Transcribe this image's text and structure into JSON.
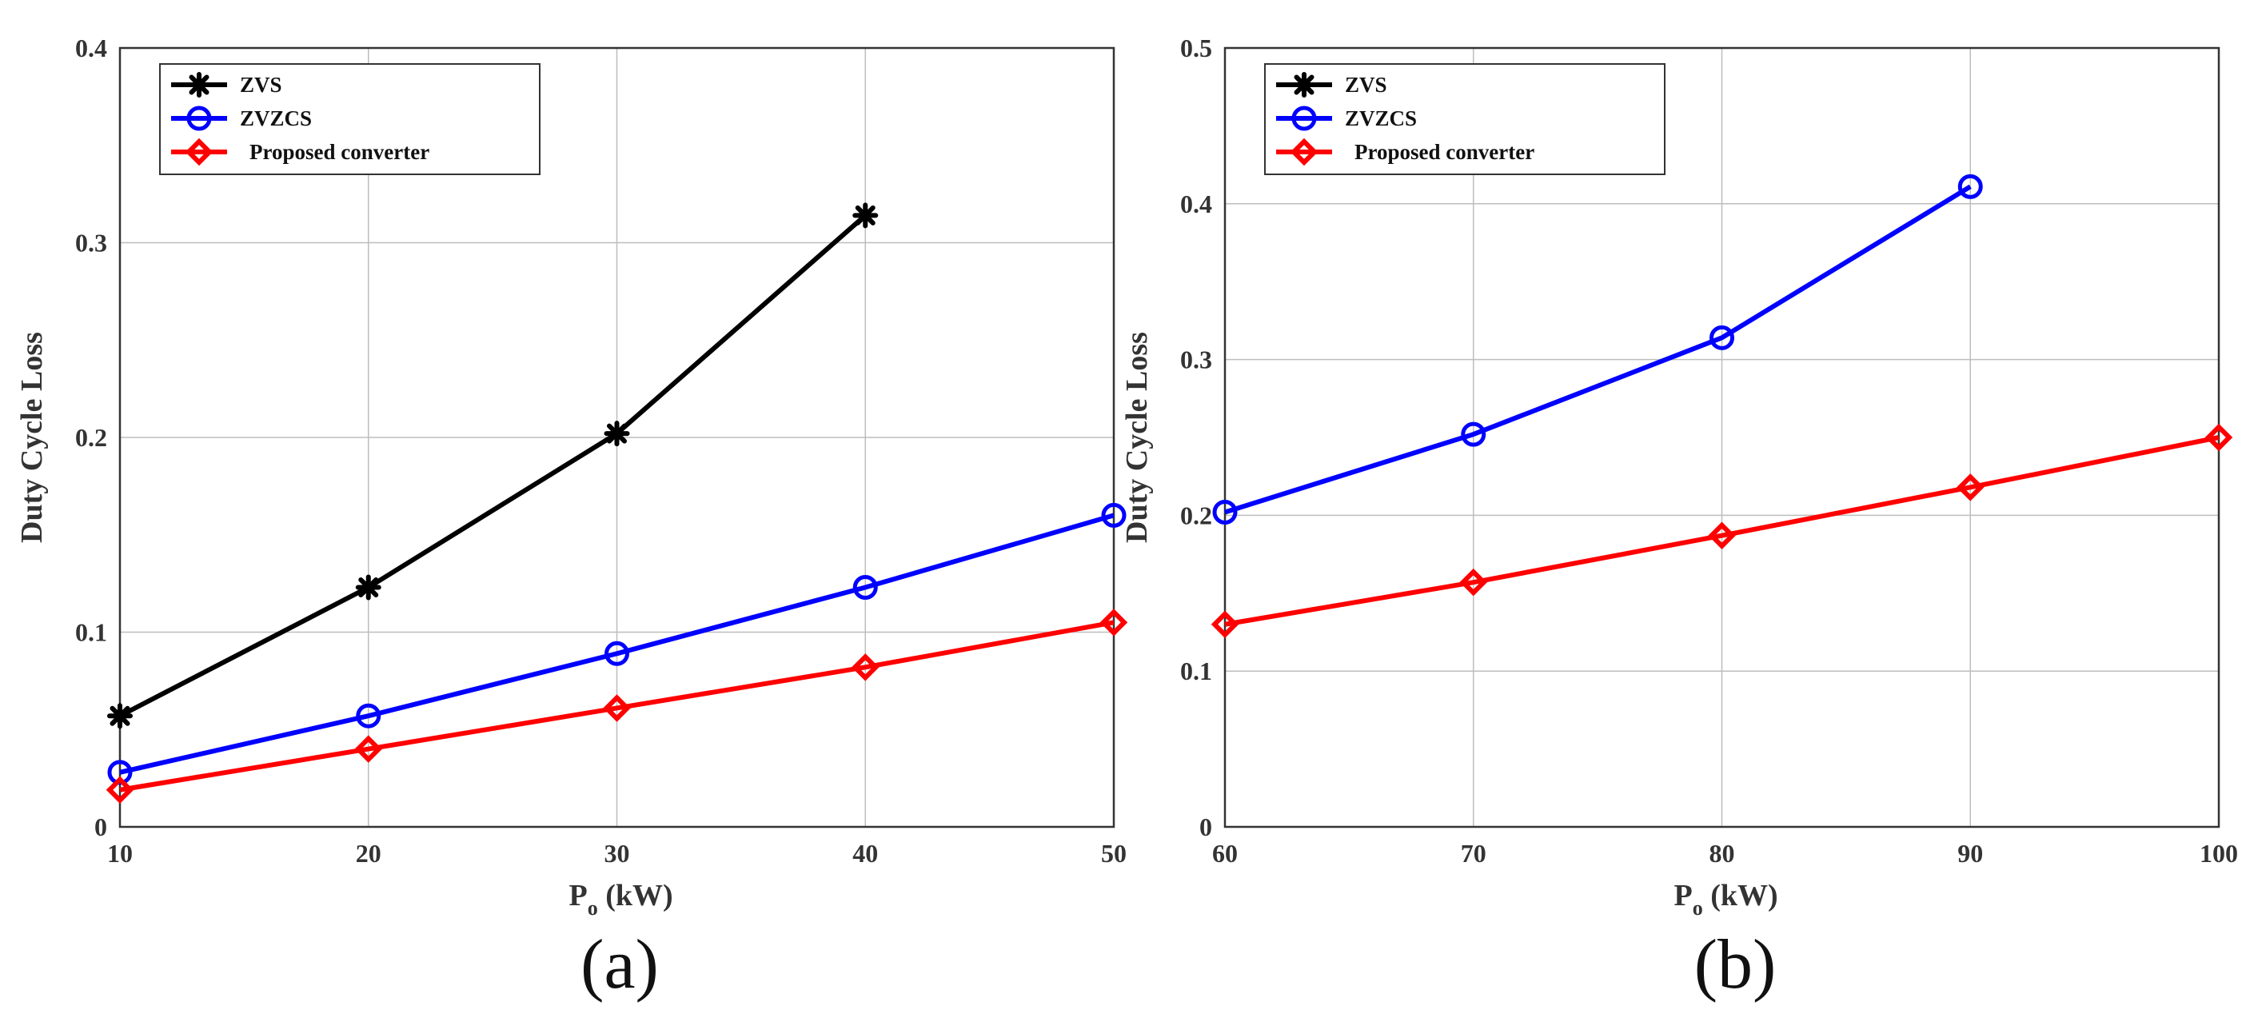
{
  "chart_data": [
    {
      "type": "line",
      "caption": "(a)",
      "xlabel_main": "P",
      "xlabel_sub": "o",
      "xlabel_unit": " (kW)",
      "ylabel": "Duty Cycle Loss",
      "xlim": [
        10,
        50
      ],
      "ylim": [
        0,
        0.4
      ],
      "xticks": [
        10,
        20,
        30,
        40,
        50
      ],
      "yticks": [
        0,
        0.1,
        0.2,
        0.3,
        0.4
      ],
      "ytick_labels": [
        "0",
        "0.1",
        "0.2",
        "0.3",
        "0.4"
      ],
      "grid": true,
      "legend_position": "top-left",
      "series": [
        {
          "name": "ZVS",
          "color": "#000000",
          "marker": "star",
          "x": [
            10,
            20,
            30,
            40
          ],
          "values": [
            0.057,
            0.123,
            0.202,
            0.314
          ]
        },
        {
          "name": "ZVZCS",
          "color": "#0000ff",
          "marker": "circle",
          "x": [
            10,
            20,
            30,
            40,
            50
          ],
          "values": [
            0.028,
            0.057,
            0.089,
            0.123,
            0.16
          ]
        },
        {
          "name": "Proposed converter",
          "color": "#ff0000",
          "marker": "diamond",
          "x": [
            10,
            20,
            30,
            40,
            50
          ],
          "values": [
            0.019,
            0.04,
            0.061,
            0.082,
            0.105
          ]
        }
      ]
    },
    {
      "type": "line",
      "caption": "(b)",
      "xlabel_main": "P",
      "xlabel_sub": "o",
      "xlabel_unit": " (kW)",
      "ylabel": "Duty Cycle Loss",
      "xlim": [
        60,
        100
      ],
      "ylim": [
        0,
        0.5
      ],
      "xticks": [
        60,
        70,
        80,
        90,
        100
      ],
      "yticks": [
        0,
        0.1,
        0.2,
        0.3,
        0.4,
        0.5
      ],
      "ytick_labels": [
        "0",
        "0.1",
        "0.2",
        "0.3",
        "0.4",
        "0.5"
      ],
      "grid": true,
      "legend_position": "top-left",
      "series": [
        {
          "name": "ZVS",
          "color": "#000000",
          "marker": "star",
          "x": [],
          "values": []
        },
        {
          "name": "ZVZCS",
          "color": "#0000ff",
          "marker": "circle",
          "x": [
            60,
            70,
            80,
            90
          ],
          "values": [
            0.202,
            0.252,
            0.314,
            0.411
          ]
        },
        {
          "name": "Proposed converter",
          "color": "#ff0000",
          "marker": "diamond",
          "x": [
            60,
            70,
            80,
            90,
            100
          ],
          "values": [
            0.13,
            0.157,
            0.187,
            0.218,
            0.25
          ]
        }
      ]
    }
  ]
}
